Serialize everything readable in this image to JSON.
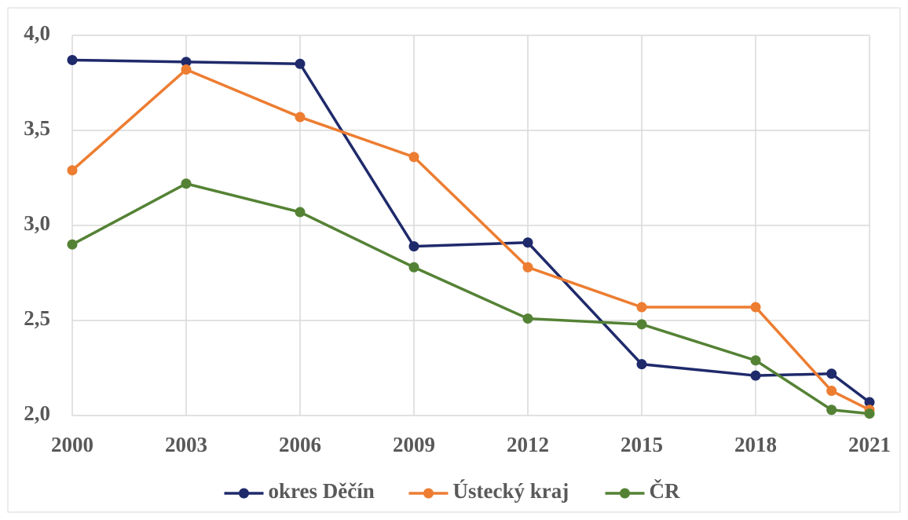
{
  "chart_data": {
    "type": "line",
    "x": [
      2000,
      2003,
      2006,
      2009,
      2012,
      2015,
      2018,
      2020,
      2021
    ],
    "series": [
      {
        "name": "okres Děčín",
        "color": "#1f2a6b",
        "values": [
          3.87,
          3.86,
          3.85,
          2.89,
          2.91,
          2.27,
          2.21,
          2.22,
          2.07
        ]
      },
      {
        "name": "Ústecký kraj",
        "color": "#ed7d31",
        "values": [
          3.29,
          3.82,
          3.57,
          3.36,
          2.78,
          2.57,
          2.57,
          2.13,
          2.03
        ]
      },
      {
        "name": "ČR",
        "color": "#548235",
        "values": [
          2.9,
          3.22,
          3.07,
          2.78,
          2.51,
          2.48,
          2.29,
          2.03,
          2.01
        ]
      }
    ],
    "xlim": [
      2000,
      2021
    ],
    "xticks": [
      2000,
      2003,
      2006,
      2009,
      2012,
      2015,
      2018,
      2021
    ],
    "ylim": [
      2,
      4
    ],
    "yticks": [
      {
        "value": 2,
        "label": "2,0"
      },
      {
        "value": 2.5,
        "label": "2,5"
      },
      {
        "value": 3,
        "label": "3,0"
      },
      {
        "value": 3.5,
        "label": "3,5"
      },
      {
        "value": 4,
        "label": "4,0"
      }
    ],
    "grid": true,
    "legend": "bottom"
  }
}
